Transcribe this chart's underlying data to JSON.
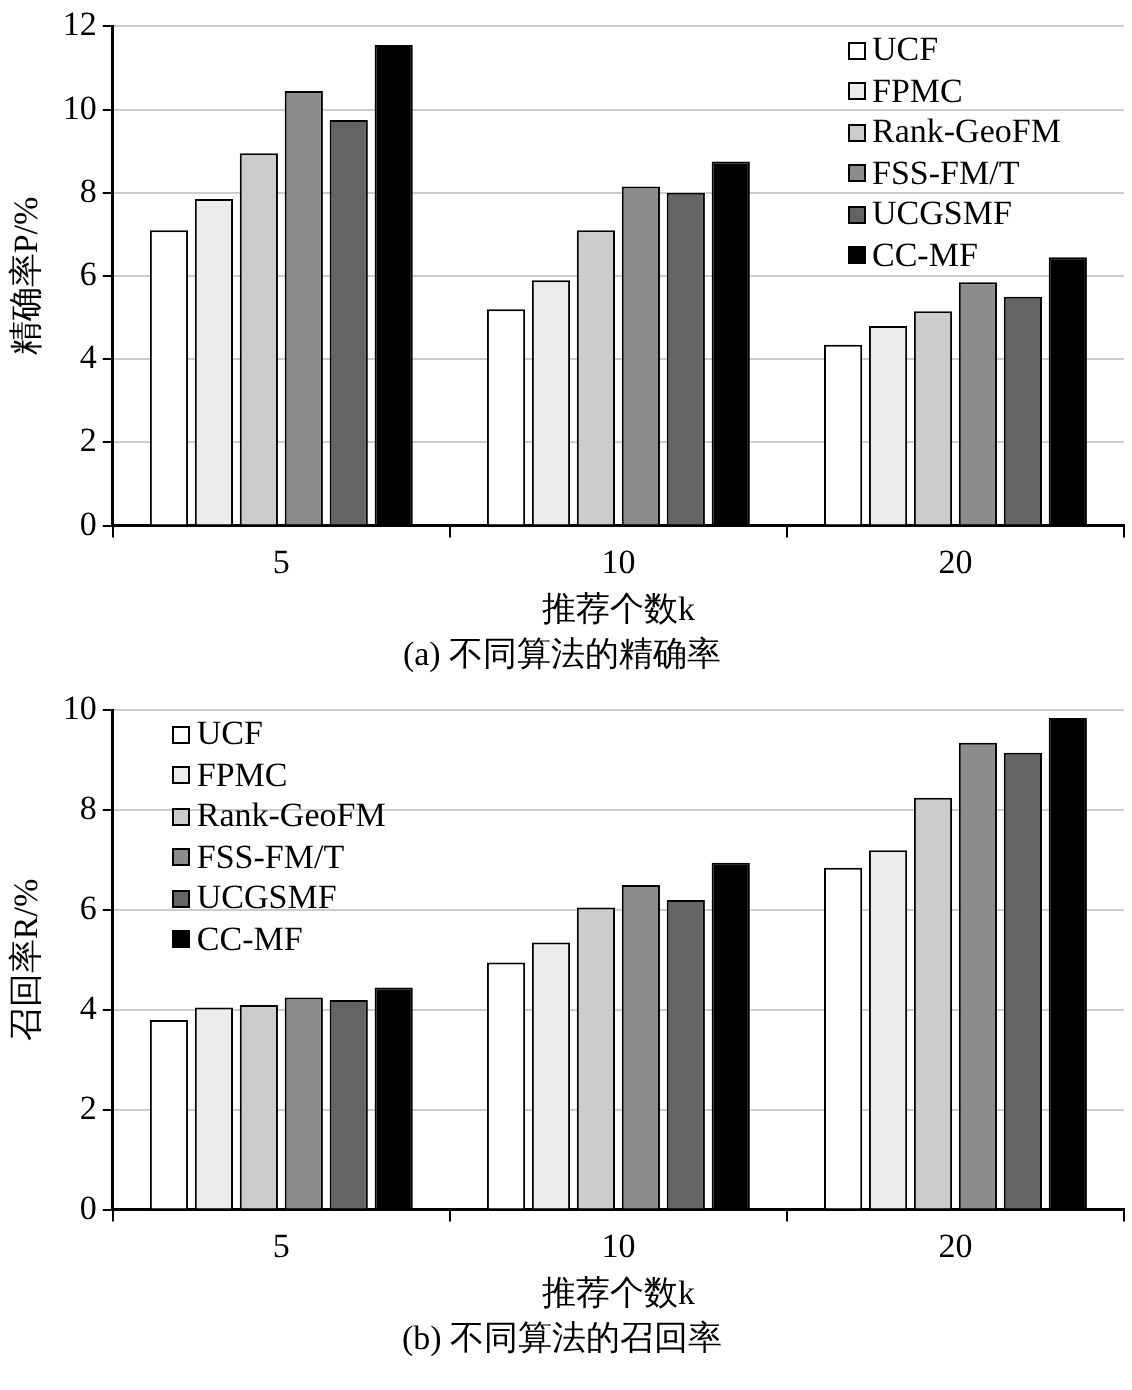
{
  "chart_data": [
    {
      "type": "bar",
      "title": "(a) 不同算法的精确率",
      "xlabel": "推荐个数k",
      "ylabel": "精确率P/%",
      "categories": [
        "5",
        "10",
        "20"
      ],
      "series": [
        {
          "name": "UCF",
          "color": "#ffffff",
          "values": [
            7.1,
            5.2,
            4.35
          ]
        },
        {
          "name": "FPMC",
          "color": "#ececec",
          "values": [
            7.85,
            5.9,
            4.8
          ]
        },
        {
          "name": "Rank-GeoFM",
          "color": "#cccccc",
          "values": [
            8.95,
            7.1,
            5.15
          ]
        },
        {
          "name": "FSS-FM/T",
          "color": "#8c8c8c",
          "values": [
            10.45,
            8.15,
            5.85
          ]
        },
        {
          "name": "UCGSMF",
          "color": "#646464",
          "values": [
            9.75,
            8.0,
            5.5
          ]
        },
        {
          "name": "CC-MF",
          "color": "#000000",
          "values": [
            11.55,
            8.75,
            6.45
          ]
        }
      ],
      "ylim": [
        0,
        12
      ],
      "yticks": [
        0,
        2,
        4,
        6,
        8,
        10,
        12
      ],
      "grid": "y",
      "legend": "top right"
    },
    {
      "type": "bar",
      "title": "(b) 不同算法的召回率",
      "xlabel": "推荐个数k",
      "ylabel": "召回率R/%",
      "categories": [
        "5",
        "10",
        "20"
      ],
      "series": [
        {
          "name": "UCF",
          "color": "#ffffff",
          "values": [
            3.8,
            4.95,
            6.85
          ]
        },
        {
          "name": "FPMC",
          "color": "#ececec",
          "values": [
            4.05,
            5.35,
            7.2
          ]
        },
        {
          "name": "Rank-GeoFM",
          "color": "#cccccc",
          "values": [
            4.1,
            6.05,
            8.25
          ]
        },
        {
          "name": "FSS-FM/T",
          "color": "#8c8c8c",
          "values": [
            4.25,
            6.5,
            9.35
          ]
        },
        {
          "name": "UCGSMF",
          "color": "#646464",
          "values": [
            4.2,
            6.2,
            9.15
          ]
        },
        {
          "name": "CC-MF",
          "color": "#000000",
          "values": [
            4.45,
            6.95,
            9.85
          ]
        }
      ],
      "ylim": [
        0,
        10
      ],
      "yticks": [
        0,
        2,
        4,
        6,
        8,
        10
      ],
      "grid": "y",
      "legend": "top left"
    }
  ]
}
